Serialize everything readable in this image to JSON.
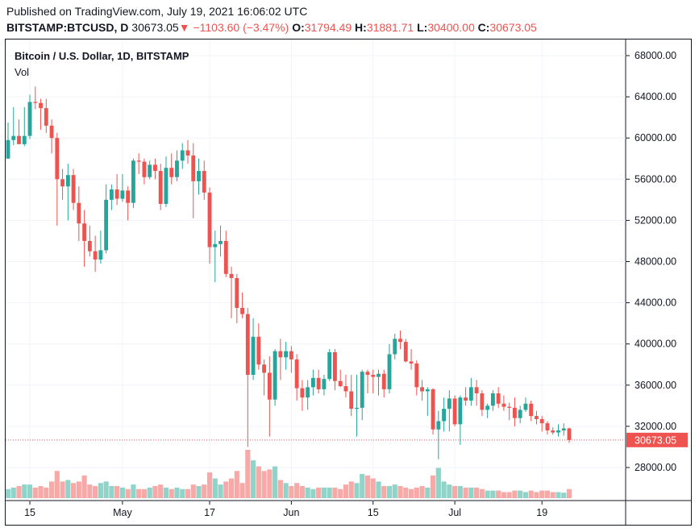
{
  "header": {
    "published": "Published on TradingView.com, July 19, 2021 16:06:02 UTC",
    "symbol": "BITSTAMP:BTCUSD, D",
    "last": "30673.05",
    "arrow": "▼",
    "change": "−1103.60 (−3.47%)",
    "o_label": "O:",
    "o_value": "31794.49",
    "h_label": "H:",
    "h_value": "31881.71",
    "l_label": "L:",
    "l_value": "30400.00",
    "c_label": "C:",
    "c_value": "30673.05"
  },
  "chart_data": {
    "type": "candlestick",
    "title": "Bitcoin / U.S. Dollar, 1D, BITSTAMP",
    "volume_label": "Vol",
    "last_price_label": "30673.05",
    "y_ticks": [
      "68000.00",
      "64000.00",
      "60000.00",
      "56000.00",
      "52000.00",
      "48000.00",
      "44000.00",
      "40000.00",
      "36000.00",
      "32000.00",
      "28000.00"
    ],
    "x_ticks": [
      "15",
      "May",
      "17",
      "Jun",
      "15",
      "Jul",
      "19"
    ],
    "ylim": [
      24000,
      68000
    ],
    "up_color": "#26a69a",
    "down_color": "#ef5350",
    "candles": [
      {
        "o": 58000,
        "h": 61500,
        "l": 58000,
        "c": 59800,
        "v": 0.3
      },
      {
        "o": 59800,
        "h": 63000,
        "l": 59300,
        "c": 60200,
        "v": 0.35
      },
      {
        "o": 60200,
        "h": 61800,
        "l": 59500,
        "c": 59400,
        "v": 0.4
      },
      {
        "o": 59400,
        "h": 63000,
        "l": 59200,
        "c": 60200,
        "v": 0.45
      },
      {
        "o": 60200,
        "h": 64200,
        "l": 59900,
        "c": 63500,
        "v": 0.45
      },
      {
        "o": 63500,
        "h": 65000,
        "l": 62800,
        "c": 63400,
        "v": 0.35
      },
      {
        "o": 63400,
        "h": 63800,
        "l": 60800,
        "c": 62900,
        "v": 0.4
      },
      {
        "o": 62900,
        "h": 63800,
        "l": 60500,
        "c": 61200,
        "v": 0.35
      },
      {
        "o": 61200,
        "h": 61800,
        "l": 58500,
        "c": 60000,
        "v": 0.55
      },
      {
        "o": 60000,
        "h": 60500,
        "l": 51500,
        "c": 56000,
        "v": 0.9
      },
      {
        "o": 56000,
        "h": 57000,
        "l": 54000,
        "c": 55300,
        "v": 0.55
      },
      {
        "o": 55300,
        "h": 57500,
        "l": 52000,
        "c": 56400,
        "v": 0.6
      },
      {
        "o": 56400,
        "h": 57000,
        "l": 53000,
        "c": 53700,
        "v": 0.5
      },
      {
        "o": 53700,
        "h": 55300,
        "l": 50000,
        "c": 51700,
        "v": 0.55
      },
      {
        "o": 51700,
        "h": 53000,
        "l": 47500,
        "c": 50000,
        "v": 0.75
      },
      {
        "o": 50000,
        "h": 51500,
        "l": 48500,
        "c": 49000,
        "v": 0.45
      },
      {
        "o": 49000,
        "h": 50500,
        "l": 47000,
        "c": 48200,
        "v": 0.4
      },
      {
        "o": 48200,
        "h": 51000,
        "l": 47800,
        "c": 49100,
        "v": 0.5
      },
      {
        "o": 49100,
        "h": 55500,
        "l": 48800,
        "c": 54000,
        "v": 0.55
      },
      {
        "o": 54000,
        "h": 55500,
        "l": 53000,
        "c": 55000,
        "v": 0.4
      },
      {
        "o": 55000,
        "h": 56500,
        "l": 53500,
        "c": 54100,
        "v": 0.4
      },
      {
        "o": 54100,
        "h": 56500,
        "l": 53800,
        "c": 54900,
        "v": 0.35
      },
      {
        "o": 54900,
        "h": 55300,
        "l": 52000,
        "c": 53700,
        "v": 0.3
      },
      {
        "o": 53700,
        "h": 58000,
        "l": 53200,
        "c": 57800,
        "v": 0.45
      },
      {
        "o": 57800,
        "h": 58500,
        "l": 56500,
        "c": 57700,
        "v": 0.3
      },
      {
        "o": 57700,
        "h": 58000,
        "l": 55500,
        "c": 56200,
        "v": 0.3
      },
      {
        "o": 56200,
        "h": 57800,
        "l": 56000,
        "c": 57400,
        "v": 0.35
      },
      {
        "o": 57400,
        "h": 58000,
        "l": 56000,
        "c": 56800,
        "v": 0.4
      },
      {
        "o": 56800,
        "h": 57500,
        "l": 53000,
        "c": 53600,
        "v": 0.45
      },
      {
        "o": 53600,
        "h": 58200,
        "l": 53300,
        "c": 57100,
        "v": 0.35
      },
      {
        "o": 57100,
        "h": 58500,
        "l": 55500,
        "c": 56200,
        "v": 0.3
      },
      {
        "o": 56200,
        "h": 58800,
        "l": 55800,
        "c": 57800,
        "v": 0.35
      },
      {
        "o": 57800,
        "h": 59500,
        "l": 57000,
        "c": 58800,
        "v": 0.3
      },
      {
        "o": 58800,
        "h": 59800,
        "l": 57500,
        "c": 58300,
        "v": 0.3
      },
      {
        "o": 58300,
        "h": 59500,
        "l": 52200,
        "c": 55800,
        "v": 0.45
      },
      {
        "o": 55800,
        "h": 58000,
        "l": 54500,
        "c": 56800,
        "v": 0.4
      },
      {
        "o": 56800,
        "h": 57800,
        "l": 54000,
        "c": 54700,
        "v": 0.45
      },
      {
        "o": 54700,
        "h": 55200,
        "l": 47800,
        "c": 49400,
        "v": 0.85
      },
      {
        "o": 49400,
        "h": 51000,
        "l": 46000,
        "c": 49700,
        "v": 0.65
      },
      {
        "o": 49700,
        "h": 51500,
        "l": 48500,
        "c": 50000,
        "v": 0.45
      },
      {
        "o": 50000,
        "h": 51000,
        "l": 46500,
        "c": 46800,
        "v": 0.55
      },
      {
        "o": 46800,
        "h": 47500,
        "l": 42500,
        "c": 46400,
        "v": 0.65
      },
      {
        "o": 46400,
        "h": 46800,
        "l": 42000,
        "c": 43500,
        "v": 0.9
      },
      {
        "o": 43500,
        "h": 45000,
        "l": 42500,
        "c": 42900,
        "v": 0.5
      },
      {
        "o": 42900,
        "h": 43500,
        "l": 30000,
        "c": 37000,
        "v": 1.6
      },
      {
        "o": 37000,
        "h": 42500,
        "l": 36500,
        "c": 40700,
        "v": 1.25
      },
      {
        "o": 40700,
        "h": 42000,
        "l": 37500,
        "c": 38000,
        "v": 1.05
      },
      {
        "o": 38000,
        "h": 38500,
        "l": 35000,
        "c": 37200,
        "v": 0.9
      },
      {
        "o": 37200,
        "h": 38800,
        "l": 31000,
        "c": 34600,
        "v": 0.95
      },
      {
        "o": 34600,
        "h": 39500,
        "l": 34000,
        "c": 39300,
        "v": 1.05
      },
      {
        "o": 39300,
        "h": 40500,
        "l": 36500,
        "c": 38700,
        "v": 0.6
      },
      {
        "o": 38700,
        "h": 40200,
        "l": 37500,
        "c": 39300,
        "v": 0.5
      },
      {
        "o": 39300,
        "h": 39800,
        "l": 37200,
        "c": 38500,
        "v": 0.4
      },
      {
        "o": 38500,
        "h": 39000,
        "l": 34500,
        "c": 35700,
        "v": 0.5
      },
      {
        "o": 35700,
        "h": 36500,
        "l": 33500,
        "c": 34800,
        "v": 0.4
      },
      {
        "o": 34800,
        "h": 36500,
        "l": 33600,
        "c": 35800,
        "v": 0.35
      },
      {
        "o": 35800,
        "h": 37500,
        "l": 35000,
        "c": 36700,
        "v": 0.3
      },
      {
        "o": 36700,
        "h": 37500,
        "l": 35200,
        "c": 35600,
        "v": 0.35
      },
      {
        "o": 35600,
        "h": 37000,
        "l": 35000,
        "c": 36600,
        "v": 0.35
      },
      {
        "o": 36600,
        "h": 39500,
        "l": 36400,
        "c": 39200,
        "v": 0.35
      },
      {
        "o": 39200,
        "h": 39500,
        "l": 35500,
        "c": 36400,
        "v": 0.35
      },
      {
        "o": 36400,
        "h": 37500,
        "l": 35800,
        "c": 35900,
        "v": 0.3
      },
      {
        "o": 35900,
        "h": 37000,
        "l": 34800,
        "c": 35400,
        "v": 0.45
      },
      {
        "o": 35400,
        "h": 37000,
        "l": 33000,
        "c": 33700,
        "v": 0.55
      },
      {
        "o": 33700,
        "h": 37000,
        "l": 31000,
        "c": 33800,
        "v": 0.5
      },
      {
        "o": 33800,
        "h": 37500,
        "l": 32600,
        "c": 37300,
        "v": 0.8
      },
      {
        "o": 37300,
        "h": 37500,
        "l": 35200,
        "c": 37000,
        "v": 0.75
      },
      {
        "o": 37000,
        "h": 37500,
        "l": 35200,
        "c": 36800,
        "v": 0.65
      },
      {
        "o": 36800,
        "h": 37500,
        "l": 35000,
        "c": 37100,
        "v": 0.55
      },
      {
        "o": 37100,
        "h": 37500,
        "l": 34800,
        "c": 35600,
        "v": 0.4
      },
      {
        "o": 35600,
        "h": 40000,
        "l": 35200,
        "c": 39000,
        "v": 0.4
      },
      {
        "o": 39000,
        "h": 41000,
        "l": 38500,
        "c": 40500,
        "v": 0.45
      },
      {
        "o": 40500,
        "h": 41300,
        "l": 39500,
        "c": 40200,
        "v": 0.4
      },
      {
        "o": 40200,
        "h": 40500,
        "l": 38200,
        "c": 38300,
        "v": 0.35
      },
      {
        "o": 38300,
        "h": 39500,
        "l": 37500,
        "c": 38100,
        "v": 0.3
      },
      {
        "o": 38100,
        "h": 38400,
        "l": 35000,
        "c": 35800,
        "v": 0.35
      },
      {
        "o": 35800,
        "h": 36500,
        "l": 34500,
        "c": 35400,
        "v": 0.4
      },
      {
        "o": 35400,
        "h": 35800,
        "l": 33000,
        "c": 35600,
        "v": 0.35
      },
      {
        "o": 35600,
        "h": 35700,
        "l": 31200,
        "c": 31700,
        "v": 0.75
      },
      {
        "o": 31700,
        "h": 33500,
        "l": 28800,
        "c": 32500,
        "v": 1.0
      },
      {
        "o": 32500,
        "h": 34800,
        "l": 31500,
        "c": 33700,
        "v": 0.55
      },
      {
        "o": 33700,
        "h": 35500,
        "l": 31500,
        "c": 34700,
        "v": 0.45
      },
      {
        "o": 34700,
        "h": 35000,
        "l": 32000,
        "c": 32200,
        "v": 0.4
      },
      {
        "o": 32200,
        "h": 35000,
        "l": 30200,
        "c": 34800,
        "v": 0.4
      },
      {
        "o": 34800,
        "h": 35800,
        "l": 34000,
        "c": 34500,
        "v": 0.35
      },
      {
        "o": 34500,
        "h": 36700,
        "l": 34000,
        "c": 35800,
        "v": 0.35
      },
      {
        "o": 35800,
        "h": 36500,
        "l": 34000,
        "c": 35200,
        "v": 0.35
      },
      {
        "o": 35200,
        "h": 35500,
        "l": 33000,
        "c": 33600,
        "v": 0.3
      },
      {
        "o": 33600,
        "h": 34200,
        "l": 32800,
        "c": 34000,
        "v": 0.25
      },
      {
        "o": 34000,
        "h": 35500,
        "l": 33500,
        "c": 35200,
        "v": 0.25
      },
      {
        "o": 35200,
        "h": 35800,
        "l": 33800,
        "c": 34200,
        "v": 0.25
      },
      {
        "o": 34200,
        "h": 35000,
        "l": 33500,
        "c": 33900,
        "v": 0.2
      },
      {
        "o": 33900,
        "h": 34300,
        "l": 32600,
        "c": 33800,
        "v": 0.2
      },
      {
        "o": 33800,
        "h": 34800,
        "l": 32000,
        "c": 32800,
        "v": 0.25
      },
      {
        "o": 32800,
        "h": 34000,
        "l": 32300,
        "c": 33600,
        "v": 0.25
      },
      {
        "o": 33600,
        "h": 34800,
        "l": 33400,
        "c": 34200,
        "v": 0.2
      },
      {
        "o": 34200,
        "h": 34500,
        "l": 32500,
        "c": 33000,
        "v": 0.25
      },
      {
        "o": 33000,
        "h": 33500,
        "l": 32200,
        "c": 32700,
        "v": 0.2
      },
      {
        "o": 32700,
        "h": 33000,
        "l": 31500,
        "c": 32300,
        "v": 0.25
      },
      {
        "o": 32300,
        "h": 32500,
        "l": 31200,
        "c": 31600,
        "v": 0.25
      },
      {
        "o": 31600,
        "h": 31900,
        "l": 31200,
        "c": 31400,
        "v": 0.2
      },
      {
        "o": 31400,
        "h": 32200,
        "l": 31000,
        "c": 31600,
        "v": 0.2
      },
      {
        "o": 31600,
        "h": 32300,
        "l": 31100,
        "c": 31794.49,
        "v": 0.18
      },
      {
        "o": 31794.49,
        "h": 31881.71,
        "l": 30400,
        "c": 30673.05,
        "v": 0.3
      }
    ]
  }
}
